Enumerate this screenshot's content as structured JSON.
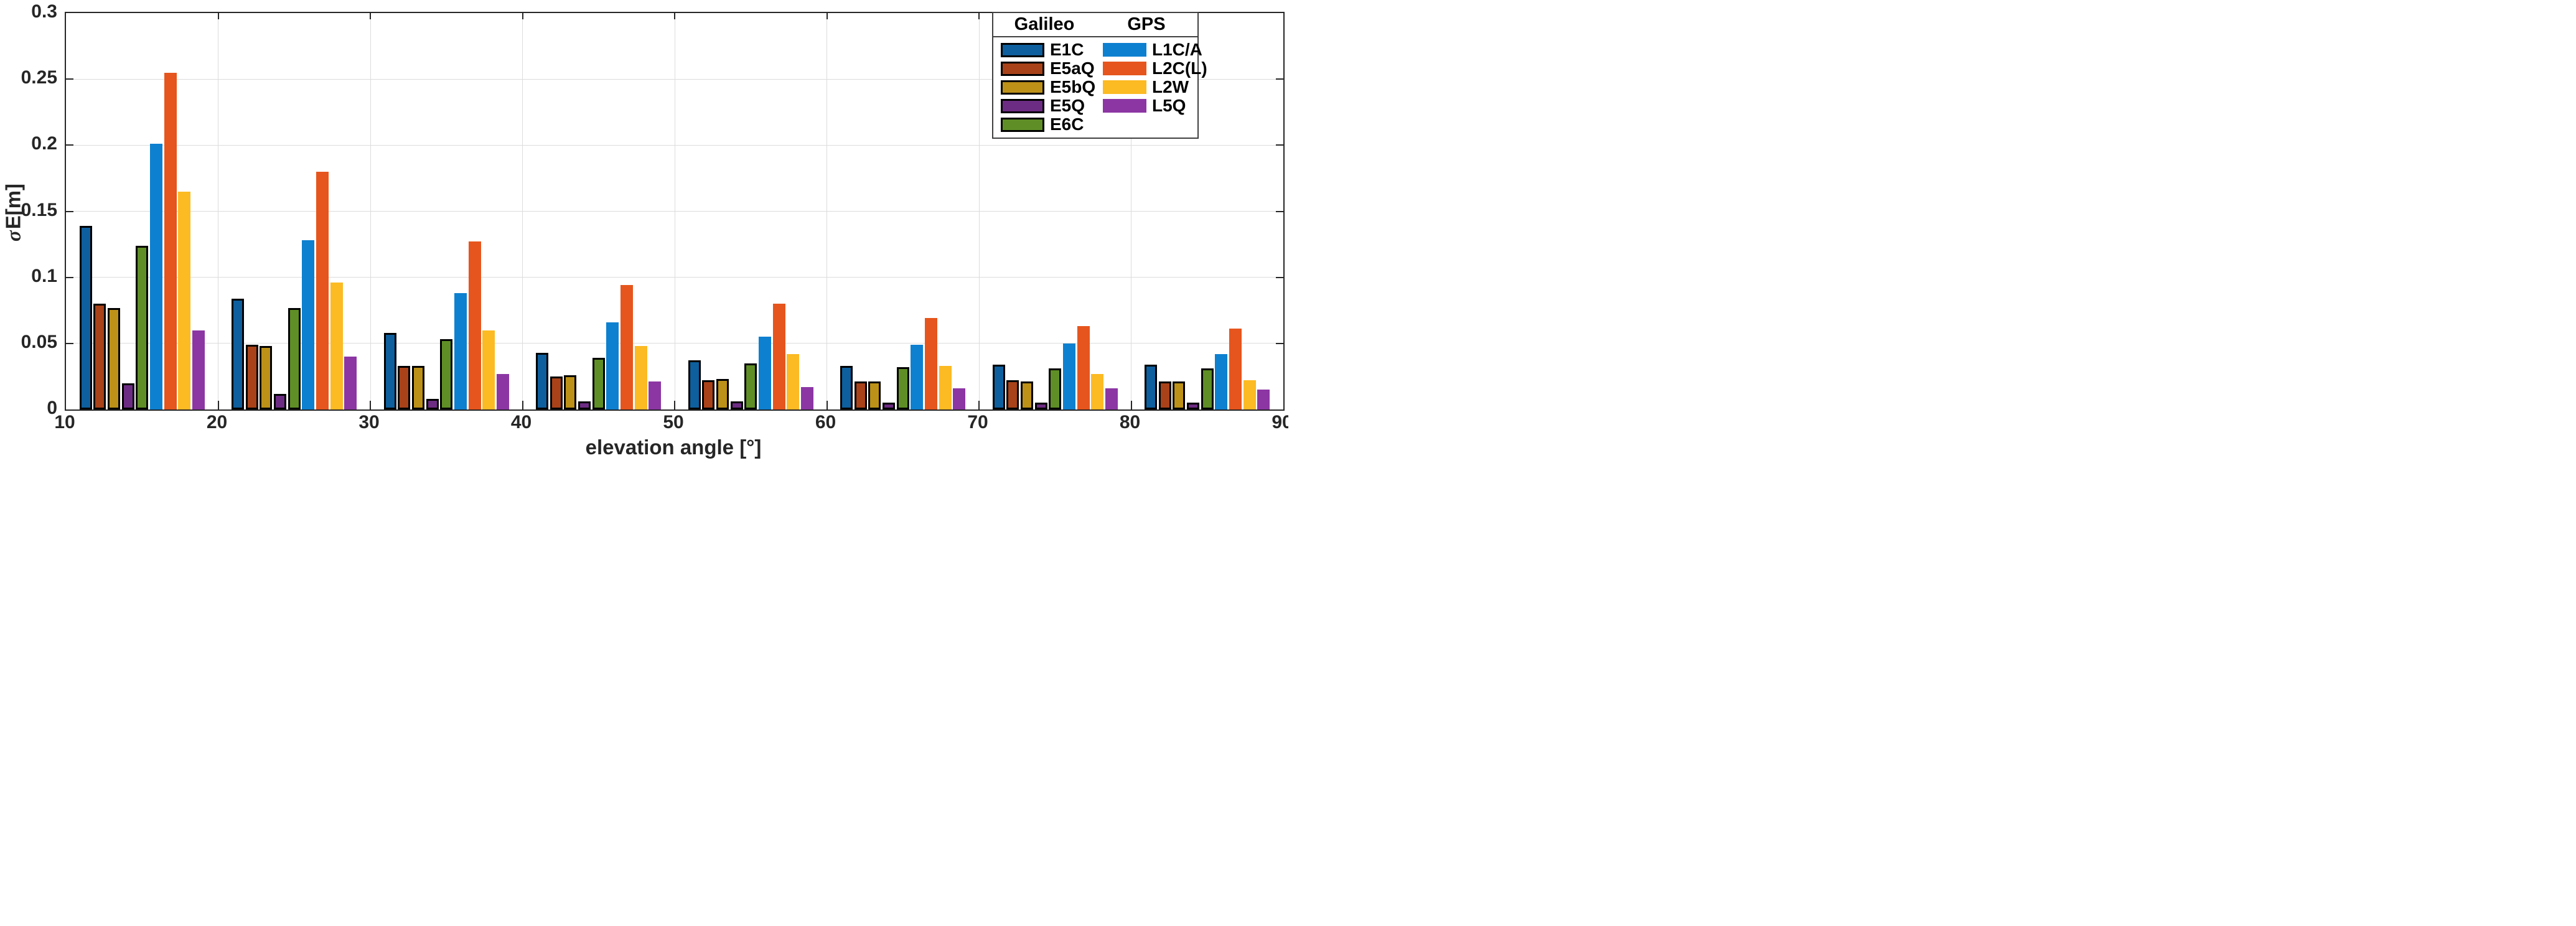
{
  "figure": {
    "xlabel": "elevation angle [°]",
    "ylabel_sigma": "σ",
    "ylabel_rest": "E[m]",
    "background": "#ffffff"
  },
  "axes": {
    "xlim": [
      10,
      90
    ],
    "ylim": [
      0,
      0.3
    ],
    "xticks": [
      10,
      20,
      30,
      40,
      50,
      60,
      70,
      80,
      90
    ],
    "xtick_labels": [
      "10",
      "20",
      "30",
      "40",
      "50",
      "60",
      "70",
      "80",
      "90"
    ],
    "yticks": [
      0,
      0.05,
      0.1,
      0.15,
      0.2,
      0.25,
      0.3
    ],
    "ytick_labels": [
      "0",
      "0.05",
      "0.1",
      "0.15",
      "0.2",
      "0.25",
      "0.3"
    ],
    "grid": true,
    "grid_color": "#dcdcdc",
    "axis_color": "#262626"
  },
  "legend": {
    "galileo_header": "Galileo",
    "gps_header": "GPS",
    "position": "top-right"
  },
  "chart_data": {
    "type": "bar",
    "title": "",
    "xlabel": "elevation angle [°]",
    "ylabel": "σE[m]",
    "xlim": [
      10,
      90
    ],
    "ylim": [
      0,
      0.3
    ],
    "categories": [
      15,
      25,
      35,
      45,
      55,
      65,
      75,
      85
    ],
    "series": [
      {
        "name": "E1C",
        "group": "Galileo",
        "color": "#0e5f9d",
        "edge": true,
        "values": [
          0.139,
          0.084,
          0.058,
          0.043,
          0.037,
          0.033,
          0.034,
          0.034
        ]
      },
      {
        "name": "E5aQ",
        "group": "Galileo",
        "color": "#a94219",
        "edge": true,
        "values": [
          0.08,
          0.049,
          0.033,
          0.025,
          0.022,
          0.021,
          0.022,
          0.021
        ]
      },
      {
        "name": "E5bQ",
        "group": "Galileo",
        "color": "#bd9118",
        "edge": true,
        "values": [
          0.077,
          0.048,
          0.033,
          0.026,
          0.023,
          0.021,
          0.021,
          0.021
        ]
      },
      {
        "name": "E5Q",
        "group": "Galileo",
        "color": "#6d2c83",
        "edge": true,
        "values": [
          0.02,
          0.012,
          0.008,
          0.006,
          0.006,
          0.005,
          0.005,
          0.005
        ]
      },
      {
        "name": "E6C",
        "group": "Galileo",
        "color": "#5f8e26",
        "edge": true,
        "values": [
          0.124,
          0.077,
          0.053,
          0.039,
          0.035,
          0.032,
          0.031,
          0.031
        ]
      },
      {
        "name": "L1C/A",
        "group": "GPS",
        "color": "#0d80d0",
        "edge": false,
        "values": [
          0.201,
          0.128,
          0.088,
          0.066,
          0.055,
          0.049,
          0.05,
          0.042
        ]
      },
      {
        "name": "L2C(L)",
        "group": "GPS",
        "color": "#e6551d",
        "edge": false,
        "values": [
          0.255,
          0.18,
          0.127,
          0.094,
          0.08,
          0.069,
          0.063,
          0.061
        ]
      },
      {
        "name": "L2W",
        "group": "GPS",
        "color": "#fcba23",
        "edge": false,
        "values": [
          0.165,
          0.096,
          0.06,
          0.048,
          0.042,
          0.033,
          0.027,
          0.022
        ]
      },
      {
        "name": "L5Q",
        "group": "GPS",
        "color": "#8c36a4",
        "edge": false,
        "values": [
          0.06,
          0.04,
          0.027,
          0.021,
          0.017,
          0.016,
          0.016,
          0.015
        ]
      }
    ]
  }
}
